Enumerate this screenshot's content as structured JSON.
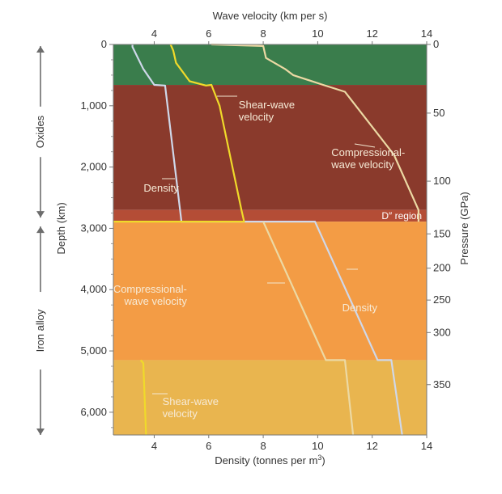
{
  "chart_data": {
    "type": "line",
    "top_axis": {
      "label": "Wave velocity (km per s)",
      "range": [
        2.5,
        14
      ],
      "ticks": [
        4,
        6,
        8,
        10,
        12,
        14
      ]
    },
    "bottom_axis": {
      "label": "Density (tonnes per m",
      "label_sup": "3",
      "label_end": ")",
      "range": [
        2.5,
        14
      ],
      "ticks": [
        4,
        6,
        8,
        10,
        12,
        14
      ]
    },
    "left_axis": {
      "label": "Depth (km)",
      "range": [
        0,
        6371
      ],
      "ticks": [
        {
          "value": 0,
          "label": "0"
        },
        {
          "value": 1000,
          "label": "1,000"
        },
        {
          "value": 2000,
          "label": "2,000"
        },
        {
          "value": 3000,
          "label": "3,000"
        },
        {
          "value": 4000,
          "label": "4,000"
        },
        {
          "value": 5000,
          "label": "5,000"
        },
        {
          "value": 6000,
          "label": "6,000"
        }
      ]
    },
    "right_axis": {
      "label": "Pressure (GPa)",
      "ticks": [
        {
          "value": 0,
          "depth": 0,
          "label": "0"
        },
        {
          "value": 50,
          "depth": 1120,
          "label": "50"
        },
        {
          "value": 100,
          "depth": 2230,
          "label": "100"
        },
        {
          "value": 150,
          "depth": 3090,
          "label": "150"
        },
        {
          "value": 200,
          "depth": 3650,
          "label": "200"
        },
        {
          "value": 250,
          "depth": 4170,
          "label": "250"
        },
        {
          "value": 300,
          "depth": 4700,
          "label": "300"
        },
        {
          "value": 350,
          "depth": 5550,
          "label": "350"
        }
      ]
    },
    "layers": [
      {
        "name": "crust-mantle-upper",
        "from": 0,
        "to": 660,
        "color": "#3a7d4c"
      },
      {
        "name": "lower-mantle",
        "from": 660,
        "to": 2700,
        "color": "#8a3a2c"
      },
      {
        "name": "d-double-prime",
        "from": 2700,
        "to": 2890,
        "color": "#b44d36",
        "label": "D″ region"
      },
      {
        "name": "outer-core",
        "from": 2890,
        "to": 5150,
        "color": "#f39c45"
      },
      {
        "name": "inner-core",
        "from": 5150,
        "to": 6371,
        "color": "#e9b54f"
      }
    ],
    "side_regions": [
      {
        "label": "Oxides",
        "from": 0,
        "to": 2890
      },
      {
        "label": "Iron alloy",
        "from": 2890,
        "to": 6371
      }
    ],
    "series": [
      {
        "key": "density",
        "color": "#cfd8ea",
        "points": [
          [
            3.2,
            0
          ],
          [
            3.2,
            40
          ],
          [
            3.4,
            220
          ],
          [
            3.6,
            400
          ],
          [
            4,
            660
          ],
          [
            4.4,
            670
          ],
          [
            5.0,
            2890
          ],
          [
            9.9,
            2890
          ],
          [
            12.2,
            5150
          ],
          [
            12.7,
            5150
          ],
          [
            13.1,
            6371
          ]
        ]
      },
      {
        "key": "vs",
        "color": "#f0da2a",
        "points": [
          [
            4.6,
            0
          ],
          [
            4.7,
            100
          ],
          [
            4.8,
            300
          ],
          [
            5.3,
            600
          ],
          [
            5.9,
            670
          ],
          [
            6.1,
            660
          ],
          [
            6.4,
            1000
          ],
          [
            7.2,
            2700
          ],
          [
            7.3,
            2890
          ],
          [
            0,
            2890
          ]
        ],
        "core": [
          [
            3.5,
            5150
          ],
          [
            3.6,
            5200
          ],
          [
            3.7,
            6371
          ]
        ]
      },
      {
        "key": "vp",
        "color": "#ecd9a4",
        "points": [
          [
            6.1,
            0
          ],
          [
            8.0,
            25
          ],
          [
            8.1,
            220
          ],
          [
            8.8,
            400
          ],
          [
            9.1,
            500
          ],
          [
            10.2,
            660
          ],
          [
            11.0,
            771
          ],
          [
            12.8,
            1800
          ],
          [
            13.7,
            2700
          ],
          [
            13.7,
            2890
          ]
        ],
        "core": [
          [
            8.0,
            2890
          ],
          [
            10.3,
            5150
          ],
          [
            11.0,
            5150
          ],
          [
            11.3,
            6371
          ]
        ]
      }
    ],
    "annotations": [
      {
        "key": "vs-label",
        "lines": [
          "Shear-wave",
          "velocity"
        ],
        "x": 7.1,
        "depth": 1040
      },
      {
        "key": "vp-label",
        "lines": [
          "Compressional-",
          "wave velocity"
        ],
        "x": 10.5,
        "depth": 1820
      },
      {
        "key": "density-label",
        "lines": [
          "Density"
        ],
        "x": 4.9,
        "depth": 2400
      },
      {
        "key": "vp-core-label",
        "lines": [
          "Compressional-",
          "wave velocity"
        ],
        "x": 5.2,
        "depth": 4050
      },
      {
        "key": "density-core-label",
        "lines": [
          "Density"
        ],
        "x": 10.9,
        "depth": 4350
      },
      {
        "key": "vs-core-label",
        "lines": [
          "Shear-wave",
          "velocity"
        ],
        "x": 4.3,
        "depth": 5880
      }
    ]
  }
}
